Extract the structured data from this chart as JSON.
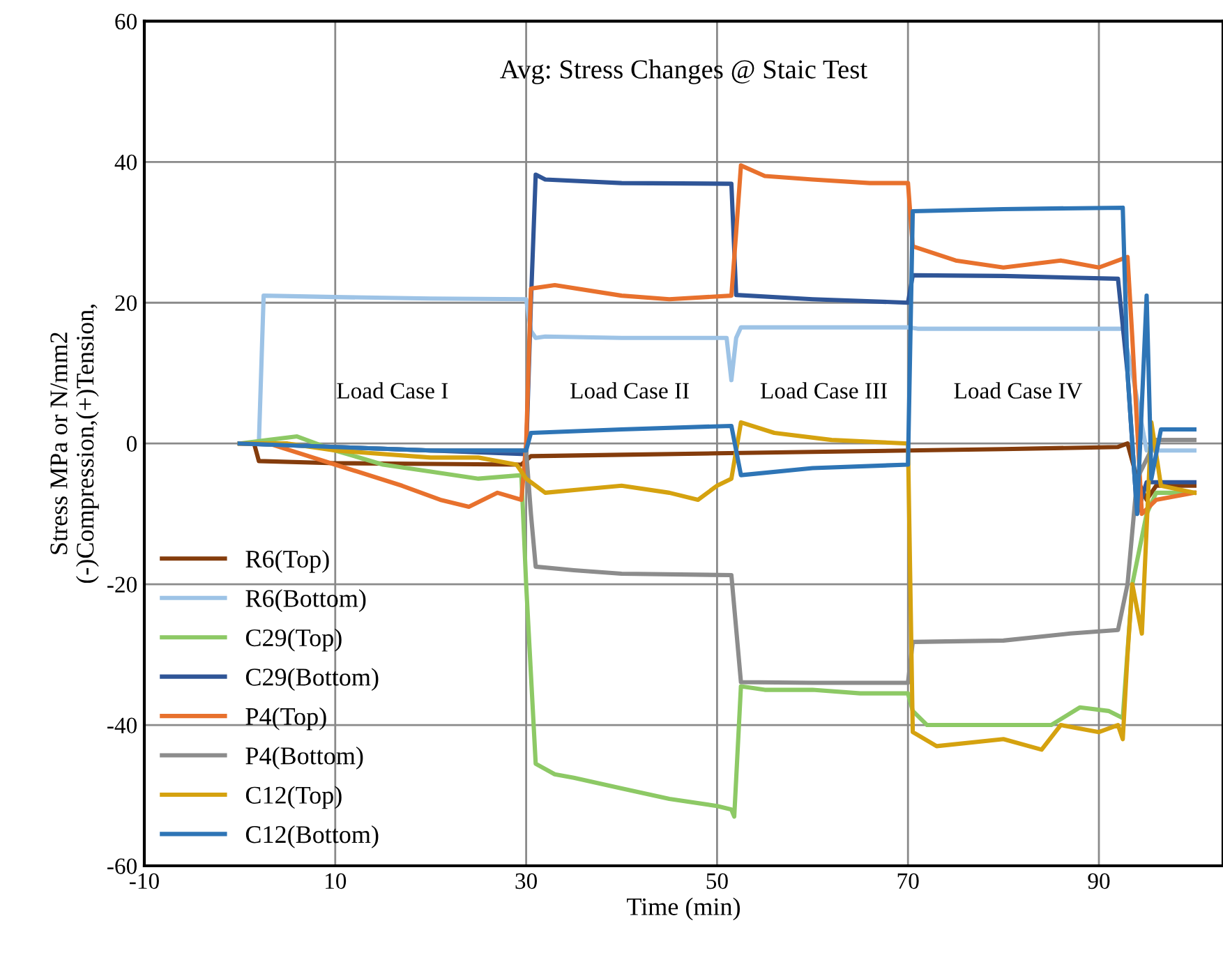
{
  "chart_data": {
    "type": "line",
    "title": "Avg: Stress Changes @ Staic Test",
    "xlabel": "Time (min)",
    "ylabel": "Stress MPa or N/mm2\n(-)Compression,(+)Tension,",
    "xlim": [
      -10,
      103
    ],
    "xticks": [
      -10,
      10,
      30,
      50,
      70,
      90
    ],
    "ylim": [
      -60,
      60
    ],
    "yticks": [
      -60,
      -40,
      -20,
      0,
      20,
      40,
      60
    ],
    "grid": true,
    "legend": "bottom left",
    "marker": "none",
    "line_style": "solid",
    "annotations": [
      "Load Case I",
      "Load Case II",
      "Load Case III",
      "Load Case IV"
    ],
    "series": [
      {
        "name": "R6(Top)",
        "color": "#843c0c",
        "x": [
          0,
          1.5,
          2,
          10,
          20,
          29.5,
          30.5,
          40,
          50,
          60,
          70,
          80,
          92,
          93,
          94,
          95,
          96,
          100
        ],
        "values": [
          0,
          0,
          -2.5,
          -2.8,
          -2.9,
          -3,
          -1.8,
          -1.6,
          -1.4,
          -1.2,
          -1,
          -0.8,
          -0.5,
          0,
          -5,
          -8,
          -6,
          -6
        ]
      },
      {
        "name": "R6(Bottom)",
        "color": "#9dc3e6",
        "x": [
          0,
          2,
          2.5,
          10,
          20,
          30,
          30.5,
          31,
          32,
          40,
          51,
          51.5,
          52,
          52.5,
          60,
          70,
          71,
          80,
          92.5,
          93.5,
          95,
          100
        ],
        "values": [
          0,
          0,
          21,
          20.8,
          20.6,
          20.5,
          16,
          15,
          15.2,
          15,
          15,
          9,
          15,
          16.5,
          16.5,
          16.5,
          16.3,
          16.3,
          16.3,
          10,
          -1,
          -1
        ]
      },
      {
        "name": "C29(Top)",
        "color": "#8dc965",
        "x": [
          0,
          3,
          6,
          10,
          15,
          20,
          25,
          29.5,
          30,
          31,
          33,
          35,
          40,
          45,
          50,
          51.5,
          51.8,
          52.5,
          55,
          60,
          65,
          70,
          70.5,
          72,
          80,
          85,
          88,
          91,
          92.5,
          93.5,
          95,
          96,
          100
        ],
        "values": [
          0,
          0.5,
          1,
          -1,
          -3,
          -4,
          -5,
          -4.5,
          -20,
          -45.5,
          -47,
          -47.5,
          -49,
          -50.5,
          -51.5,
          -52,
          -53,
          -34.5,
          -35,
          -35,
          -35.5,
          -35.5,
          -38,
          -40,
          -40,
          -40,
          -37.5,
          -38,
          -39,
          -20,
          -10,
          -7,
          -7
        ]
      },
      {
        "name": "C29(Bottom)",
        "color": "#2f5597",
        "x": [
          0,
          10,
          20,
          30,
          30.5,
          31,
          32,
          40,
          51.5,
          52,
          60,
          70,
          70.5,
          80,
          92,
          93,
          94,
          95,
          100
        ],
        "values": [
          0,
          -0.5,
          -1,
          -1.5,
          20,
          38.2,
          37.5,
          37,
          36.9,
          21.1,
          20.5,
          20,
          23.9,
          23.8,
          23.4,
          10,
          -10,
          -5.5,
          -5.5
        ]
      },
      {
        "name": "P4(Top)",
        "color": "#e8712d",
        "x": [
          0,
          3,
          10,
          17,
          21,
          24,
          27,
          29.5,
          30,
          30.5,
          33,
          40,
          45,
          51.5,
          52,
          52.5,
          55,
          60,
          66,
          70,
          70.5,
          75,
          80,
          86,
          90,
          93,
          93.5,
          94.5,
          96,
          100
        ],
        "values": [
          0,
          0,
          -3,
          -6,
          -8,
          -9,
          -7,
          -8,
          0,
          22,
          22.5,
          21,
          20.5,
          21,
          30,
          39.5,
          38,
          37.5,
          37,
          37,
          28,
          26,
          25,
          26,
          25,
          26.5,
          15,
          -10,
          -8,
          -7
        ]
      },
      {
        "name": "P4(Bottom)",
        "color": "#8c8c8c",
        "x": [
          0,
          10,
          20,
          30,
          30.5,
          31,
          35,
          40,
          51.5,
          52.5,
          60,
          70,
          70.5,
          80,
          87,
          92,
          93,
          94,
          96,
          100
        ],
        "values": [
          0,
          -0.5,
          -1,
          -1,
          -10,
          -17.5,
          -18,
          -18.5,
          -18.7,
          -33.9,
          -34,
          -34,
          -28.2,
          -28,
          -27,
          -26.5,
          -20,
          -5,
          0.5,
          0.5
        ]
      },
      {
        "name": "C12(Top)",
        "color": "#d5a20f",
        "x": [
          0,
          5,
          10,
          20,
          25,
          29,
          30,
          31,
          32,
          36,
          40,
          45,
          48,
          50,
          51.5,
          52.5,
          56,
          62,
          70,
          70.5,
          73,
          80,
          84,
          86,
          90,
          92,
          92.5,
          93,
          93.5,
          94.5,
          95.5,
          96.5,
          100
        ],
        "values": [
          0,
          0,
          -1,
          -2,
          -2,
          -3,
          -5,
          -6,
          -7,
          -6.5,
          -6,
          -7,
          -8,
          -6,
          -5,
          3,
          1.5,
          0.5,
          0,
          -41,
          -43,
          -42,
          -43.5,
          -40,
          -41,
          -40,
          -42,
          -30,
          -20,
          -27,
          3,
          -6,
          -7
        ]
      },
      {
        "name": "C12(Bottom)",
        "color": "#2e75b6",
        "x": [
          0,
          10,
          20,
          30,
          30.5,
          40,
          51.5,
          52.5,
          60,
          70,
          70.5,
          80,
          92.5,
          93,
          94,
          95,
          95.5,
          96.5,
          100
        ],
        "values": [
          0,
          -0.5,
          -1,
          -1,
          1.5,
          2,
          2.5,
          -4.5,
          -3.5,
          -3,
          33,
          33.3,
          33.5,
          10,
          -10,
          21,
          -5,
          2,
          2
        ]
      }
    ]
  }
}
